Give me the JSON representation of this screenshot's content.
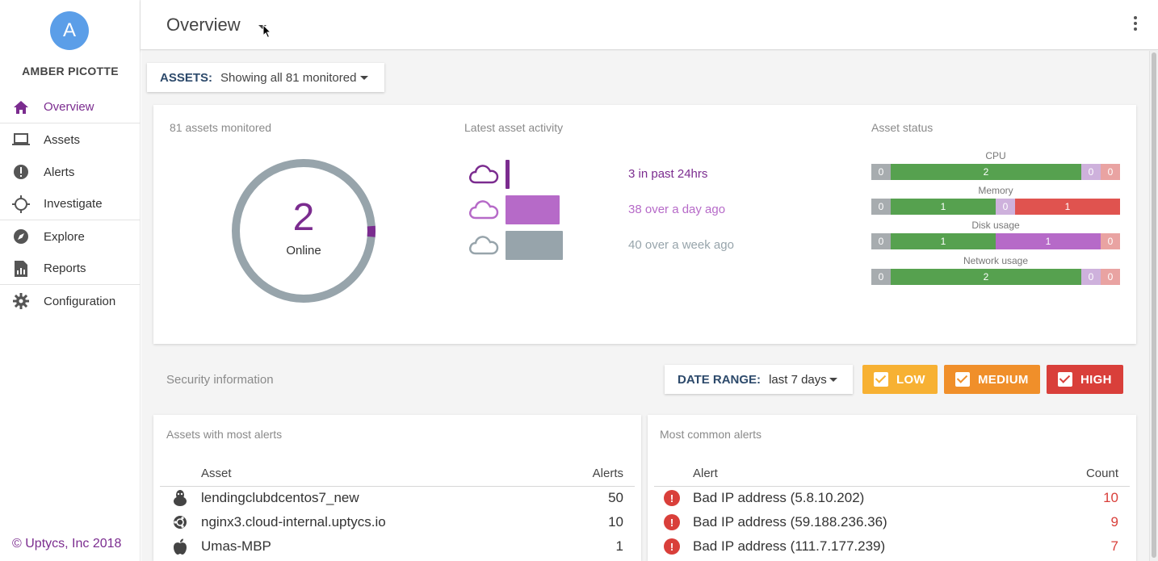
{
  "user": {
    "avatar_letter": "A",
    "name": "AMBER PICOTTE"
  },
  "sidebar": {
    "items": [
      {
        "label": "Overview",
        "icon": "home-icon",
        "active": true
      },
      {
        "label": "Assets",
        "icon": "laptop-icon"
      },
      {
        "label": "Alerts",
        "icon": "alert-circle-icon"
      },
      {
        "label": "Investigate",
        "icon": "crosshair-icon"
      },
      {
        "label": "Explore",
        "icon": "compass-icon"
      },
      {
        "label": "Reports",
        "icon": "report-icon"
      },
      {
        "label": "Configuration",
        "icon": "gear-icon"
      }
    ],
    "copyright": "© Uptycs, Inc 2018"
  },
  "header": {
    "title": "Overview"
  },
  "assets_filter": {
    "label": "ASSETS:",
    "value": "Showing all 81 monitored"
  },
  "summary": {
    "monitored_label": "81 assets monitored",
    "online_count": "2",
    "online_label": "Online",
    "online_fraction": 0.025
  },
  "activity": {
    "label": "Latest asset activity",
    "rows": [
      {
        "text": "3 in past 24hrs",
        "count": 3,
        "color": "#7b2c8f"
      },
      {
        "text": "38 over a day ago",
        "count": 38,
        "color": "#b66ac8"
      },
      {
        "text": "40 over a week ago",
        "count": 40,
        "color": "#97a4ab"
      }
    ]
  },
  "asset_status": {
    "label": "Asset status",
    "rows": [
      {
        "title": "CPU",
        "segments": [
          "0",
          "2",
          "0",
          "0"
        ]
      },
      {
        "title": "Memory",
        "segments": [
          "0",
          "1",
          "0",
          "1"
        ]
      },
      {
        "title": "Disk usage",
        "segments": [
          "0",
          "1",
          "1",
          "0"
        ]
      },
      {
        "title": "Network usage",
        "segments": [
          "0",
          "2",
          "0",
          "0"
        ]
      }
    ]
  },
  "security": {
    "label": "Security information",
    "date_range_label": "DATE RANGE:",
    "date_range_value": "last 7 days",
    "severity": {
      "low": "LOW",
      "medium": "MEDIUM",
      "high": "HIGH"
    }
  },
  "assets_alerts": {
    "title": "Assets with most alerts",
    "col_asset": "Asset",
    "col_alerts": "Alerts",
    "rows": [
      {
        "name": "lendingclubdcentos7_new",
        "count": "50",
        "icon": "linux-icon"
      },
      {
        "name": "nginx3.cloud-internal.uptycs.io",
        "count": "10",
        "icon": "ubuntu-icon"
      },
      {
        "name": "Umas-MBP",
        "count": "1",
        "icon": "apple-icon"
      }
    ]
  },
  "common_alerts": {
    "title": "Most common alerts",
    "col_alert": "Alert",
    "col_count": "Count",
    "rows": [
      {
        "name": "Bad IP address (5.8.10.202)",
        "count": "10"
      },
      {
        "name": "Bad IP address (59.188.236.36)",
        "count": "9"
      },
      {
        "name": "Bad IP address (111.7.177.239)",
        "count": "7"
      }
    ]
  },
  "colors": {
    "brand": "#7b2c8f",
    "accent_blue": "#5b9ee8"
  }
}
